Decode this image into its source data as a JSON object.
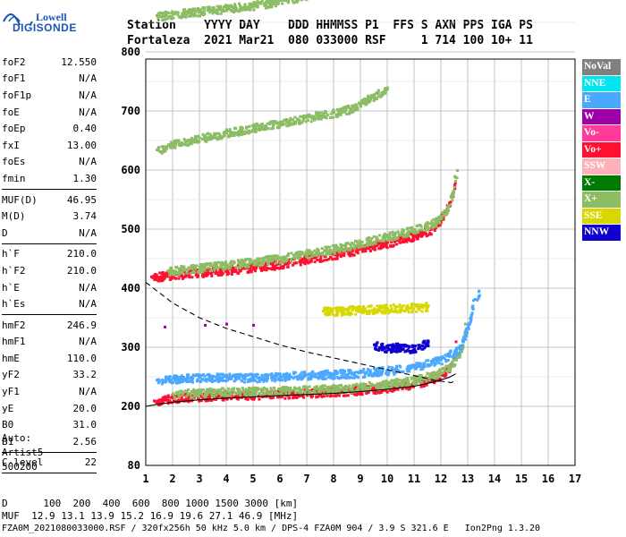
{
  "logo": {
    "line1": "Lowell",
    "line2": "DIGISONDE"
  },
  "header": {
    "line1": "Station    YYYY DAY    DDD HHMMSS P1  FFS S AXN PPS IGA PS",
    "line2": "Fortaleza  2021 Mar21  080 033000 RSF     1 714 100 10+ 11"
  },
  "params": [
    {
      "group": [
        {
          "name": "foF2",
          "value": "12.550"
        },
        {
          "name": "foF1",
          "value": "N/A"
        },
        {
          "name": "foF1p",
          "value": "N/A"
        },
        {
          "name": "foE",
          "value": "N/A"
        },
        {
          "name": "foEp",
          "value": "0.40"
        },
        {
          "name": "fxI",
          "value": "13.00"
        },
        {
          "name": "foEs",
          "value": "N/A"
        },
        {
          "name": "fmin",
          "value": "1.30"
        }
      ]
    },
    {
      "group": [
        {
          "name": "MUF(D)",
          "value": "46.95"
        },
        {
          "name": "M(D)",
          "value": "3.74"
        },
        {
          "name": "D",
          "value": "N/A"
        }
      ]
    },
    {
      "group": [
        {
          "name": "h`F",
          "value": "210.0"
        },
        {
          "name": "h`F2",
          "value": "210.0"
        },
        {
          "name": "h`E",
          "value": "N/A"
        },
        {
          "name": "h`Es",
          "value": "N/A"
        }
      ]
    },
    {
      "group": [
        {
          "name": "hmF2",
          "value": "246.9"
        },
        {
          "name": "hmF1",
          "value": "N/A"
        },
        {
          "name": "hmE",
          "value": "110.0"
        },
        {
          "name": "yF2",
          "value": "33.2"
        },
        {
          "name": "yF1",
          "value": "N/A"
        },
        {
          "name": "yE",
          "value": "20.0"
        },
        {
          "name": "B0",
          "value": "31.0"
        },
        {
          "name": "B1",
          "value": "2.56"
        }
      ]
    },
    {
      "group": [
        {
          "name": "C-level",
          "value": "22"
        }
      ]
    }
  ],
  "auto": {
    "line1": "Auto:",
    "line2": "Artist5",
    "line3": "500200"
  },
  "legend": [
    {
      "label": "NoVal",
      "bg": "#808080",
      "fg": "#ffffff"
    },
    {
      "label": "NNE",
      "bg": "#00e5ee",
      "fg": "#ffffff"
    },
    {
      "label": "E",
      "bg": "#4aa8ff",
      "fg": "#ffffff"
    },
    {
      "label": "W",
      "bg": "#a000a8",
      "fg": "#ffffff"
    },
    {
      "label": "Vo-",
      "bg": "#ff3a9a",
      "fg": "#ffffff"
    },
    {
      "label": "Vo+",
      "bg": "#ff1030",
      "fg": "#ffffff"
    },
    {
      "label": "SSW",
      "bg": "#ffb0b8",
      "fg": "#ffffff"
    },
    {
      "label": "X-",
      "bg": "#007a00",
      "fg": "#ffffff"
    },
    {
      "label": "X+",
      "bg": "#8cbc64",
      "fg": "#ffffff"
    },
    {
      "label": "SSE",
      "bg": "#d8d800",
      "fg": "#ffffff"
    },
    {
      "label": "NNW",
      "bg": "#1000d0",
      "fg": "#ffffff"
    }
  ],
  "footer": {
    "line1": "D      100  200  400  600  800 1000 1500 3000 [km]",
    "line2": "MUF  12.9 13.1 13.9 15.2 16.9 19.6 27.1 46.9 [MHz]",
    "line3": "FZA0M_2021080033000.RSF / 320fx256h 50 kHz 5.0 km / DPS-4 FZA0M 904 / 3.9 S 321.6 E   Ion2Png 1.3.20"
  },
  "chart_data": {
    "type": "scatter",
    "xlim": [
      1,
      17
    ],
    "ylim": [
      80,
      900
    ],
    "xticks": [
      1,
      2,
      3,
      4,
      5,
      6,
      7,
      8,
      9,
      10,
      11,
      12,
      13,
      14,
      15,
      16,
      17
    ],
    "yticks": [
      80,
      200,
      300,
      400,
      500,
      600,
      700,
      800,
      900
    ],
    "grid": true,
    "xlabel": "",
    "ylabel": "",
    "profile_curve": [
      [
        1.0,
        410
      ],
      [
        2.0,
        375
      ],
      [
        3.0,
        350
      ],
      [
        4.0,
        332
      ],
      [
        5.0,
        318
      ],
      [
        6.0,
        304
      ],
      [
        7.0,
        292
      ],
      [
        8.0,
        282
      ],
      [
        9.0,
        272
      ],
      [
        10.0,
        262
      ],
      [
        11.0,
        252
      ],
      [
        11.8,
        244
      ],
      [
        12.4,
        240
      ],
      [
        12.55,
        245
      ]
    ],
    "trace_o_curve": [
      [
        1.0,
        200
      ],
      [
        1.5,
        204
      ],
      [
        2.0,
        207
      ],
      [
        3.0,
        211
      ],
      [
        4.0,
        214
      ],
      [
        5.0,
        216
      ],
      [
        6.0,
        218
      ],
      [
        7.0,
        220
      ],
      [
        8.0,
        222
      ],
      [
        9.0,
        225
      ],
      [
        10.0,
        229
      ],
      [
        11.0,
        234
      ],
      [
        11.8,
        242
      ],
      [
        12.3,
        249
      ],
      [
        12.55,
        255
      ]
    ],
    "traces": [
      {
        "name": "F1 hop o",
        "color": "#ff1030",
        "points": [
          [
            1.3,
            210
          ],
          [
            2,
            215
          ],
          [
            3,
            218
          ],
          [
            4,
            220
          ],
          [
            5,
            221
          ],
          [
            6,
            222
          ],
          [
            7,
            224
          ],
          [
            8,
            226
          ],
          [
            9,
            229
          ],
          [
            10,
            233
          ],
          [
            10.8,
            238
          ],
          [
            11.4,
            244
          ],
          [
            11.9,
            252
          ],
          [
            12.2,
            262
          ],
          [
            12.4,
            275
          ],
          [
            12.5,
            290
          ],
          [
            12.55,
            310
          ]
        ]
      },
      {
        "name": "F1 hop x",
        "color": "#8cbc64",
        "points": [
          [
            2,
            222
          ],
          [
            3,
            225
          ],
          [
            4,
            226
          ],
          [
            5,
            227
          ],
          [
            6,
            228
          ],
          [
            7,
            229
          ],
          [
            8,
            231
          ],
          [
            9,
            234
          ],
          [
            10,
            239
          ],
          [
            11,
            246
          ],
          [
            11.8,
            256
          ],
          [
            12.3,
            268
          ],
          [
            12.6,
            285
          ],
          [
            12.8,
            310
          ],
          [
            12.9,
            340
          ]
        ]
      },
      {
        "name": "F1 hop spread",
        "color": "#4aa8ff",
        "points": [
          [
            1.4,
            245
          ],
          [
            2,
            248
          ],
          [
            3,
            250
          ],
          [
            4,
            250
          ],
          [
            5,
            250
          ],
          [
            6,
            252
          ],
          [
            7,
            254
          ],
          [
            8,
            256
          ],
          [
            9,
            258
          ],
          [
            10,
            262
          ],
          [
            11,
            268
          ],
          [
            12,
            280
          ],
          [
            12.7,
            300
          ],
          [
            13.0,
            340
          ],
          [
            13.2,
            380
          ],
          [
            13.4,
            395
          ]
        ]
      },
      {
        "name": "F2 hop o",
        "color": "#ff1030",
        "points": [
          [
            1.2,
            420
          ],
          [
            2,
            424
          ],
          [
            3,
            428
          ],
          [
            4,
            432
          ],
          [
            5,
            437
          ],
          [
            6,
            442
          ],
          [
            7,
            450
          ],
          [
            8,
            458
          ],
          [
            9,
            468
          ],
          [
            10,
            478
          ],
          [
            11,
            490
          ],
          [
            11.6,
            500
          ],
          [
            12,
            520
          ],
          [
            12.3,
            545
          ],
          [
            12.5,
            575
          ]
        ]
      },
      {
        "name": "F2 hop x",
        "color": "#8cbc64",
        "points": [
          [
            1.8,
            430
          ],
          [
            3,
            436
          ],
          [
            4,
            441
          ],
          [
            5,
            446
          ],
          [
            6,
            452
          ],
          [
            7,
            460
          ],
          [
            8,
            468
          ],
          [
            9,
            478
          ],
          [
            10,
            489
          ],
          [
            11,
            500
          ],
          [
            11.8,
            514
          ],
          [
            12.2,
            535
          ],
          [
            12.4,
            560
          ],
          [
            12.5,
            590
          ],
          [
            12.6,
            600
          ]
        ]
      },
      {
        "name": "F3 hop",
        "color": "#8cbc64",
        "points": [
          [
            1.4,
            635
          ],
          [
            2,
            645
          ],
          [
            3,
            655
          ],
          [
            4,
            664
          ],
          [
            5,
            673
          ],
          [
            6,
            682
          ],
          [
            7,
            690
          ],
          [
            8,
            698
          ],
          [
            8.6,
            705
          ],
          [
            9,
            715
          ],
          [
            9.6,
            730
          ],
          [
            10,
            740
          ]
        ]
      },
      {
        "name": "F4 hop",
        "color": "#8cbc64",
        "points": [
          [
            1.4,
            862
          ],
          [
            2,
            865
          ],
          [
            3,
            870
          ],
          [
            4,
            875
          ],
          [
            5,
            880
          ],
          [
            6,
            888
          ],
          [
            7,
            896
          ]
        ]
      },
      {
        "name": "Es",
        "color": "#d8d800",
        "points": [
          [
            7.6,
            362
          ],
          [
            8.5,
            364
          ],
          [
            9.5,
            366
          ],
          [
            10.5,
            368
          ],
          [
            11.5,
            370
          ]
        ]
      },
      {
        "name": "W cloud",
        "color": "#a000a8",
        "points": [
          [
            3.2,
            338
          ],
          [
            4,
            340
          ],
          [
            5,
            338
          ],
          [
            1.7,
            335
          ]
        ]
      },
      {
        "name": "NNW",
        "color": "#1000d0",
        "points": [
          [
            9.5,
            305
          ],
          [
            10,
            300
          ],
          [
            10.5,
            302
          ],
          [
            11,
            298
          ],
          [
            11.5,
            310
          ]
        ]
      }
    ]
  }
}
